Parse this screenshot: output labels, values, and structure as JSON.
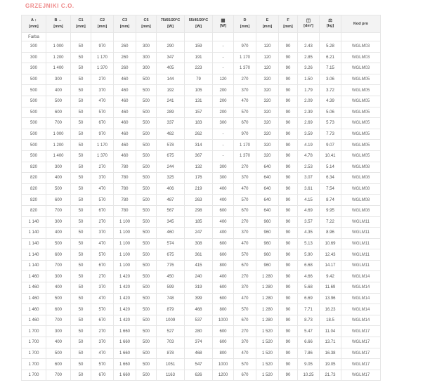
{
  "page": {
    "title": "GRZEJNIKI C.O.",
    "title_color": "#ee8888",
    "accent_border_color": "#e6e6e6",
    "header_bg_color": "#f3f3f3"
  },
  "table": {
    "columns": [
      {
        "id": "a",
        "label": "A ↕",
        "unit": "[mm]"
      },
      {
        "id": "b",
        "label": "B ↔",
        "unit": "[mm]"
      },
      {
        "id": "c1",
        "label": "C1",
        "unit": "[mm]"
      },
      {
        "id": "c2",
        "label": "C2",
        "unit": "[mm]"
      },
      {
        "id": "c3",
        "label": "C3",
        "unit": "[mm]"
      },
      {
        "id": "c5",
        "label": "C5",
        "unit": "[mm]"
      },
      {
        "id": "p75",
        "label": "75/65/20°C",
        "unit": "[W]"
      },
      {
        "id": "p55",
        "label": "55/45/20°C",
        "unit": "[W]"
      },
      {
        "id": "hw",
        "icon": "electric-heater-icon",
        "glyph": "▦",
        "unit": "[W]"
      },
      {
        "id": "d",
        "label": "D",
        "unit": "[mm]"
      },
      {
        "id": "e",
        "label": "E",
        "unit": "[mm]"
      },
      {
        "id": "f",
        "label": "F",
        "unit": "[mm]"
      },
      {
        "id": "vol",
        "icon": "water-volume-icon",
        "glyph": "◫",
        "unit": "[dm³]"
      },
      {
        "id": "kg",
        "icon": "weight-icon",
        "glyph": "⚖",
        "unit": "[kg]"
      },
      {
        "id": "kod",
        "label": "Kod pro",
        "unit": ""
      }
    ],
    "farba_label": "Farba",
    "rows": [
      [
        "300",
        "1 000",
        "50",
        "970",
        "260",
        "300",
        "290",
        "159",
        "-",
        "970",
        "120",
        "90",
        "2.43",
        "5.28",
        "WGLM03"
      ],
      [
        "300",
        "1 200",
        "50",
        "1 170",
        "260",
        "300",
        "347",
        "191",
        "-",
        "1 170",
        "120",
        "90",
        "2.85",
        "6.21",
        "WGLM03"
      ],
      [
        "300",
        "1 400",
        "50",
        "1 370",
        "260",
        "300",
        "405",
        "223",
        "-",
        "1 370",
        "120",
        "90",
        "3.26",
        "7.15",
        "WGLM03"
      ],
      [
        "500",
        "300",
        "50",
        "270",
        "460",
        "500",
        "144",
        "79",
        "120",
        "270",
        "320",
        "90",
        "1.50",
        "3.06",
        "WGLM05"
      ],
      [
        "500",
        "400",
        "50",
        "370",
        "460",
        "500",
        "192",
        "105",
        "200",
        "370",
        "320",
        "90",
        "1.79",
        "3.72",
        "WGLM05"
      ],
      [
        "500",
        "500",
        "50",
        "470",
        "460",
        "500",
        "241",
        "131",
        "200",
        "470",
        "320",
        "90",
        "2.09",
        "4.39",
        "WGLM05"
      ],
      [
        "500",
        "600",
        "50",
        "570",
        "460",
        "500",
        "289",
        "157",
        "200",
        "570",
        "320",
        "90",
        "2.39",
        "5.06",
        "WGLM05"
      ],
      [
        "500",
        "700",
        "50",
        "670",
        "460",
        "500",
        "337",
        "183",
        "300",
        "670",
        "320",
        "90",
        "2.69",
        "5.73",
        "WGLM05"
      ],
      [
        "500",
        "1 000",
        "50",
        "970",
        "460",
        "500",
        "482",
        "262",
        "-",
        "970",
        "320",
        "90",
        "3.59",
        "7.73",
        "WGLM05"
      ],
      [
        "500",
        "1 200",
        "50",
        "1 170",
        "460",
        "500",
        "578",
        "314",
        "-",
        "1 170",
        "320",
        "90",
        "4.19",
        "9.07",
        "WGLM05"
      ],
      [
        "500",
        "1 400",
        "50",
        "1 370",
        "460",
        "500",
        "675",
        "367",
        "-",
        "1 370",
        "320",
        "90",
        "4.78",
        "10.41",
        "WGLM05"
      ],
      [
        "820",
        "300",
        "50",
        "270",
        "780",
        "500",
        "244",
        "132",
        "300",
        "270",
        "640",
        "90",
        "2.53",
        "5.14",
        "WGLM08"
      ],
      [
        "820",
        "400",
        "50",
        "370",
        "780",
        "500",
        "325",
        "176",
        "300",
        "370",
        "640",
        "90",
        "3.07",
        "6.34",
        "WGLM08"
      ],
      [
        "820",
        "500",
        "50",
        "470",
        "780",
        "500",
        "406",
        "219",
        "400",
        "470",
        "640",
        "90",
        "3.61",
        "7.54",
        "WGLM08"
      ],
      [
        "820",
        "600",
        "50",
        "570",
        "780",
        "500",
        "487",
        "263",
        "400",
        "570",
        "640",
        "90",
        "4.15",
        "8.74",
        "WGLM08"
      ],
      [
        "820",
        "700",
        "50",
        "670",
        "780",
        "500",
        "567",
        "298",
        "600",
        "670",
        "640",
        "90",
        "4.69",
        "9.95",
        "WGLM08"
      ],
      [
        "1 140",
        "300",
        "50",
        "270",
        "1 100",
        "500",
        "345",
        "185",
        "400",
        "270",
        "960",
        "90",
        "3.57",
        "7.22",
        "WGLM11"
      ],
      [
        "1 140",
        "400",
        "50",
        "370",
        "1 100",
        "500",
        "460",
        "247",
        "400",
        "370",
        "960",
        "90",
        "4.35",
        "8.96",
        "WGLM11"
      ],
      [
        "1 140",
        "500",
        "50",
        "470",
        "1 100",
        "500",
        "574",
        "308",
        "600",
        "470",
        "960",
        "90",
        "5.13",
        "10.69",
        "WGLM11"
      ],
      [
        "1 140",
        "600",
        "50",
        "570",
        "1 100",
        "500",
        "675",
        "361",
        "600",
        "570",
        "960",
        "90",
        "5.90",
        "12.43",
        "WGLM11"
      ],
      [
        "1 140",
        "700",
        "50",
        "670",
        "1 100",
        "500",
        "776",
        "415",
        "800",
        "670",
        "960",
        "90",
        "6.68",
        "14.17",
        "WGLM11"
      ],
      [
        "1 460",
        "300",
        "50",
        "270",
        "1 420",
        "500",
        "450",
        "240",
        "400",
        "270",
        "1 280",
        "90",
        "4.66",
        "9.42",
        "WGLM14"
      ],
      [
        "1 460",
        "400",
        "50",
        "370",
        "1 420",
        "500",
        "599",
        "319",
        "600",
        "370",
        "1 280",
        "90",
        "5.68",
        "11.69",
        "WGLM14"
      ],
      [
        "1 460",
        "500",
        "50",
        "470",
        "1 420",
        "500",
        "748",
        "399",
        "600",
        "470",
        "1 280",
        "90",
        "6.69",
        "13.96",
        "WGLM14"
      ],
      [
        "1 460",
        "600",
        "50",
        "570",
        "1 420",
        "500",
        "879",
        "468",
        "800",
        "570",
        "1 280",
        "90",
        "7.71",
        "16.23",
        "WGLM14"
      ],
      [
        "1 460",
        "700",
        "50",
        "670",
        "1 420",
        "500",
        "1009",
        "537",
        "1000",
        "670",
        "1 280",
        "90",
        "8.73",
        "18.5",
        "WGLM14"
      ],
      [
        "1 700",
        "300",
        "50",
        "270",
        "1 660",
        "500",
        "527",
        "280",
        "600",
        "270",
        "1 520",
        "90",
        "5.47",
        "11.04",
        "WGLM17"
      ],
      [
        "1 700",
        "400",
        "50",
        "370",
        "1 660",
        "500",
        "703",
        "374",
        "600",
        "370",
        "1 520",
        "90",
        "6.66",
        "13.71",
        "WGLM17"
      ],
      [
        "1 700",
        "500",
        "50",
        "470",
        "1 660",
        "500",
        "878",
        "468",
        "800",
        "470",
        "1 520",
        "90",
        "7.86",
        "16.38",
        "WGLM17"
      ],
      [
        "1 700",
        "600",
        "50",
        "570",
        "1 660",
        "500",
        "1051",
        "547",
        "1000",
        "570",
        "1 520",
        "90",
        "9.05",
        "19.05",
        "WGLM17"
      ],
      [
        "1 700",
        "700",
        "50",
        "670",
        "1 660",
        "500",
        "1163",
        "626",
        "1200",
        "670",
        "1 520",
        "90",
        "10.25",
        "21.73",
        "WGLM17"
      ]
    ]
  }
}
